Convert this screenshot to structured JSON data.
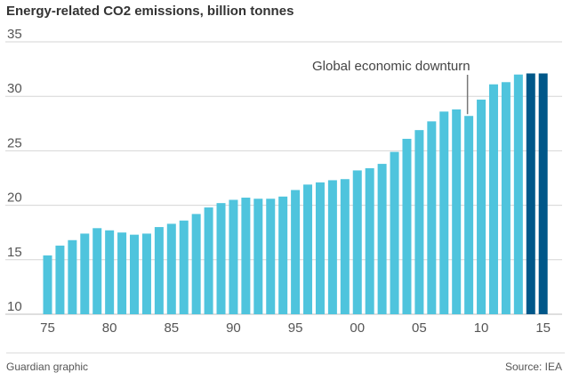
{
  "colors": {
    "bar": "#4fc4dd",
    "bar_highlight": "#005789",
    "grid": "#d6d6d6",
    "text": "#555555"
  },
  "footer": {
    "credit": "Guardian graphic",
    "source": "Source: IEA"
  },
  "chart_data": {
    "type": "bar",
    "title": "Energy-related CO2 emissions, billion tonnes",
    "xlabel": "",
    "ylabel": "",
    "ylim": [
      10,
      35
    ],
    "yticks": [
      10,
      15,
      20,
      25,
      30,
      35
    ],
    "xtick_labels": [
      {
        "year": 1975,
        "label": "75"
      },
      {
        "year": 1980,
        "label": "80"
      },
      {
        "year": 1985,
        "label": "85"
      },
      {
        "year": 1990,
        "label": "90"
      },
      {
        "year": 1995,
        "label": "95"
      },
      {
        "year": 2000,
        "label": "00"
      },
      {
        "year": 2005,
        "label": "05"
      },
      {
        "year": 2010,
        "label": "10"
      },
      {
        "year": 2015,
        "label": "15"
      }
    ],
    "grid": true,
    "categories": [
      1975,
      1976,
      1977,
      1978,
      1979,
      1980,
      1981,
      1982,
      1983,
      1984,
      1985,
      1986,
      1987,
      1988,
      1989,
      1990,
      1991,
      1992,
      1993,
      1994,
      1995,
      1996,
      1997,
      1998,
      1999,
      2000,
      2001,
      2002,
      2003,
      2004,
      2005,
      2006,
      2007,
      2008,
      2009,
      2010,
      2011,
      2012,
      2013,
      2014,
      2015
    ],
    "values": [
      15.4,
      16.3,
      16.8,
      17.4,
      17.9,
      17.7,
      17.5,
      17.3,
      17.4,
      18.0,
      18.3,
      18.6,
      19.2,
      19.8,
      20.2,
      20.5,
      20.7,
      20.6,
      20.6,
      20.8,
      21.4,
      21.9,
      22.1,
      22.3,
      22.4,
      23.2,
      23.4,
      23.8,
      24.9,
      26.1,
      26.9,
      27.7,
      28.6,
      28.8,
      28.2,
      29.7,
      31.1,
      31.3,
      32.0,
      32.1,
      32.1
    ],
    "highlight": [
      2014,
      2015
    ],
    "annotations": [
      {
        "text": "Global economic downturn",
        "year": 2009
      }
    ]
  }
}
